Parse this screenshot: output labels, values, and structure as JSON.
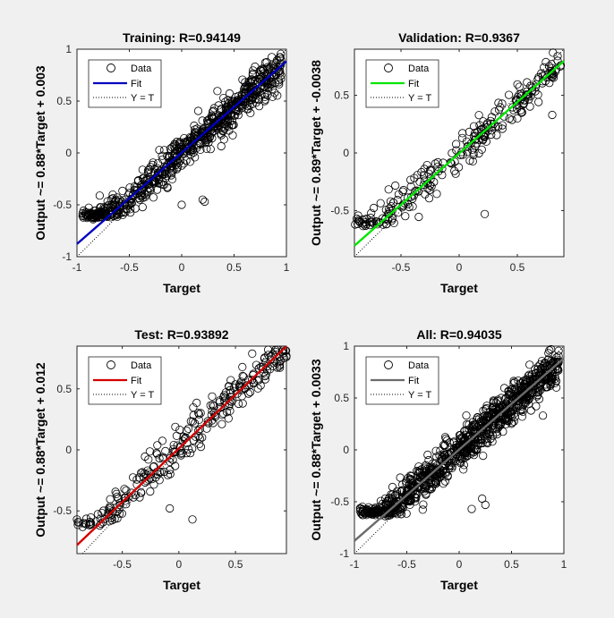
{
  "figure": {
    "background": "#f0f0f0",
    "marker_color": "#000000"
  },
  "chart_data": [
    {
      "type": "scatter",
      "title": "Training: R=0.94149",
      "xlabel": "Target",
      "ylabel": "Output ~= 0.88*Target + 0.003",
      "xlim": [
        -1,
        1
      ],
      "ylim": [
        -1,
        1
      ],
      "xticks": [
        -1,
        -0.5,
        0,
        0.5,
        1
      ],
      "xtick_labels": [
        "-1",
        "-0.5",
        "0",
        "0.5",
        "1"
      ],
      "yticks": [
        -1,
        -0.5,
        0,
        0.5,
        1
      ],
      "ytick_labels": [
        "-1",
        "-0.5",
        "0",
        "0.5",
        "1"
      ],
      "fit": {
        "slope": 0.88,
        "intercept": 0.003,
        "color": "#0000bf"
      },
      "legend": {
        "position": "top-left",
        "entries": [
          "Data",
          "Fit",
          "Y = T"
        ]
      },
      "points": {
        "n": 700,
        "seed": 11,
        "x_range": [
          -0.95,
          0.95
        ],
        "noise": 0.09,
        "extra": [
          [
            0.2,
            -0.45
          ],
          [
            0.22,
            -0.47
          ],
          [
            -0.7,
            -0.53
          ],
          [
            -0.62,
            -0.58
          ],
          [
            0.0,
            -0.5
          ]
        ]
      }
    },
    {
      "type": "scatter",
      "title": "Validation: R=0.9367",
      "xlabel": "Target",
      "ylabel": "Output ~= 0.89*Target + -0.0038",
      "xlim": [
        -0.9,
        0.9
      ],
      "ylim": [
        -0.9,
        0.9
      ],
      "xticks": [
        -0.5,
        0,
        0.5
      ],
      "xtick_labels": [
        "-0.5",
        "0",
        "0.5"
      ],
      "yticks": [
        -0.5,
        0,
        0.5
      ],
      "ytick_labels": [
        "-0.5",
        "0",
        "0.5"
      ],
      "fit": {
        "slope": 0.89,
        "intercept": -0.0038,
        "color": "#00e600"
      },
      "legend": {
        "position": "top-left",
        "entries": [
          "Data",
          "Fit",
          "Y = T"
        ]
      },
      "points": {
        "n": 260,
        "seed": 29,
        "x_range": [
          -0.9,
          0.9
        ],
        "noise": 0.08,
        "extra": [
          [
            0.22,
            -0.53
          ],
          [
            -0.88,
            -0.57
          ],
          [
            0.8,
            0.33
          ],
          [
            -0.25,
            -0.28
          ]
        ]
      }
    },
    {
      "type": "scatter",
      "title": "Test: R=0.93892",
      "xlabel": "Target",
      "ylabel": "Output ~= 0.88*Target + 0.012",
      "xlim": [
        -0.9,
        0.95
      ],
      "ylim": [
        -0.85,
        0.85
      ],
      "xticks": [
        -0.5,
        0,
        0.5
      ],
      "xtick_labels": [
        "-0.5",
        "0",
        "0.5"
      ],
      "yticks": [
        -0.5,
        0,
        0.5
      ],
      "ytick_labels": [
        "-0.5",
        "0",
        "0.5"
      ],
      "fit": {
        "slope": 0.88,
        "intercept": 0.012,
        "color": "#d40000"
      },
      "legend": {
        "position": "top-left",
        "entries": [
          "Data",
          "Fit",
          "Y = T"
        ]
      },
      "points": {
        "n": 270,
        "seed": 47,
        "x_range": [
          -0.9,
          0.95
        ],
        "noise": 0.08,
        "extra": [
          [
            0.12,
            -0.57
          ],
          [
            -0.08,
            -0.48
          ],
          [
            -0.9,
            -0.57
          ],
          [
            0.95,
            0.77
          ]
        ]
      }
    },
    {
      "type": "scatter",
      "title": "All: R=0.94035",
      "xlabel": "Target",
      "ylabel": "Output ~= 0.88*Target + 0.0033",
      "xlim": [
        -1,
        1
      ],
      "ylim": [
        -1,
        1
      ],
      "xticks": [
        -1,
        -0.5,
        0,
        0.5,
        1
      ],
      "xtick_labels": [
        "-1",
        "-0.5",
        "0",
        "0.5",
        "1"
      ],
      "yticks": [
        -1,
        -0.5,
        0,
        0.5,
        1
      ],
      "ytick_labels": [
        "-1",
        "-0.5",
        "0",
        "0.5",
        "1"
      ],
      "fit": {
        "slope": 0.88,
        "intercept": 0.0033,
        "color": "#6b6b6b"
      },
      "legend": {
        "position": "top-left",
        "entries": [
          "Data",
          "Fit",
          "Y = T"
        ]
      },
      "points": {
        "n": 950,
        "seed": 73,
        "x_range": [
          -0.95,
          0.95
        ],
        "noise": 0.09,
        "extra": [
          [
            0.22,
            -0.47
          ],
          [
            0.25,
            -0.53
          ],
          [
            -0.7,
            -0.53
          ],
          [
            0.8,
            0.33
          ],
          [
            0.12,
            -0.57
          ]
        ]
      }
    }
  ]
}
